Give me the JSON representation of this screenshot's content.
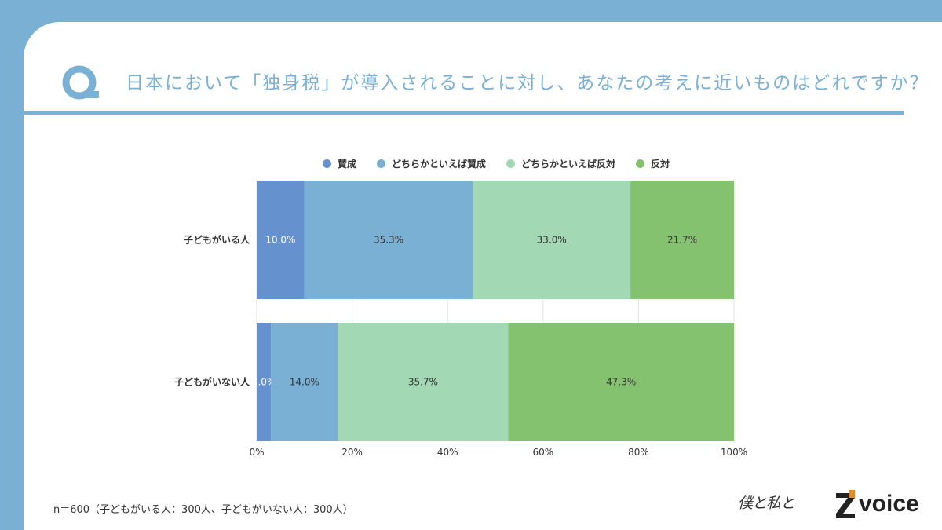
{
  "question": "日本において「独身税」が導入されることに対し、あなたの考えに近いものはどれですか？",
  "footnote": "n＝600（子どもがいる人：300人、子どもがいない人：300人）",
  "logos": {
    "signature": "僕と私と",
    "brand": "voice"
  },
  "colors": {
    "background": "#7ab0d3",
    "title": "#7ab0d3",
    "series": [
      "#6691cf",
      "#7ab0d3",
      "#a3d8b4",
      "#85c26f"
    ]
  },
  "chart_data": {
    "type": "bar",
    "orientation": "horizontal",
    "stacked": true,
    "categories": [
      "子どもがいる人",
      "子どもがいない人"
    ],
    "series": [
      {
        "name": "賛成",
        "values": [
          10.0,
          3.0
        ]
      },
      {
        "name": "どちらかといえば賛成",
        "values": [
          35.3,
          14.0
        ]
      },
      {
        "name": "どちらかといえば反対",
        "values": [
          33.0,
          35.7
        ]
      },
      {
        "name": "反対",
        "values": [
          21.7,
          47.3
        ]
      }
    ],
    "data_labels": [
      [
        "10.0%",
        "35.3%",
        "33.0%",
        "21.7%"
      ],
      [
        "3.0%",
        "14.0%",
        "35.7%",
        "47.3%"
      ]
    ],
    "xticks": [
      "0%",
      "20%",
      "40%",
      "60%",
      "80%",
      "100%"
    ],
    "xlim": [
      0,
      100
    ],
    "grid": true,
    "legend_position": "top"
  }
}
